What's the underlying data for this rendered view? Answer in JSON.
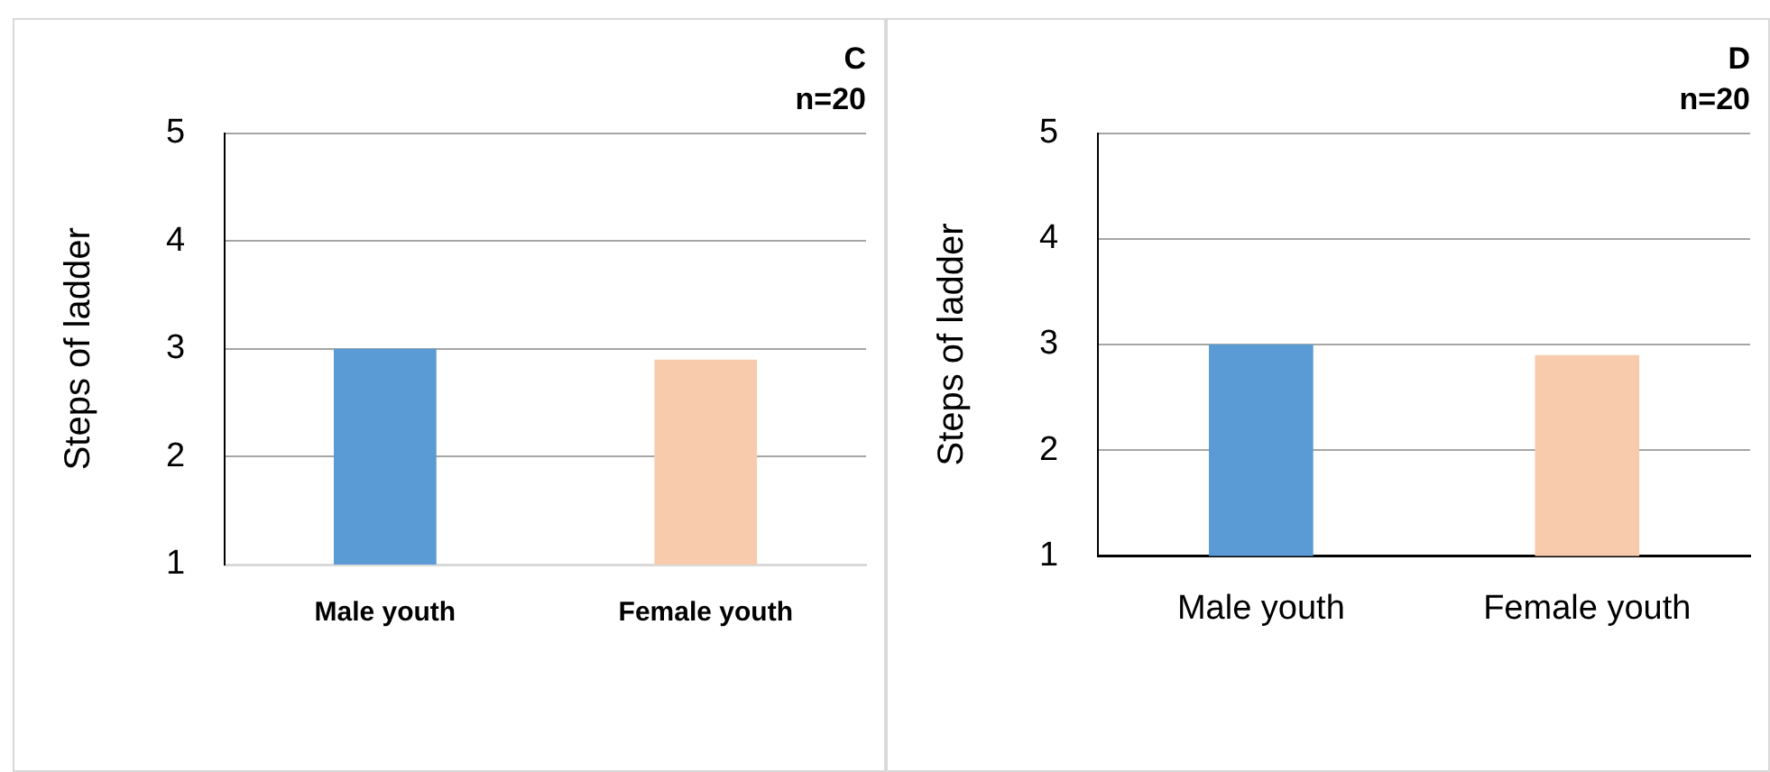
{
  "chart_data": [
    {
      "type": "bar",
      "title": "C",
      "subtitle": "n=20",
      "ylabel": "Steps of ladder",
      "categories": [
        "Male youth",
        "Female youth"
      ],
      "colors": [
        "#5b9bd5",
        "#f8cbad"
      ],
      "values": [
        3.0,
        2.9
      ],
      "ylim": [
        1,
        5
      ],
      "yticks": [
        1,
        2,
        3,
        4,
        5
      ],
      "grid": "y",
      "legend": false
    },
    {
      "type": "bar",
      "title": "D",
      "subtitle": "n=20",
      "ylabel": "Steps of ladder",
      "categories": [
        "Male youth",
        "Female youth"
      ],
      "colors": [
        "#5b9bd5",
        "#f8cbad"
      ],
      "values": [
        3.0,
        2.9
      ],
      "ylim": [
        1,
        5
      ],
      "yticks": [
        1,
        2,
        3,
        4,
        5
      ],
      "grid": "y",
      "legend": false
    }
  ]
}
